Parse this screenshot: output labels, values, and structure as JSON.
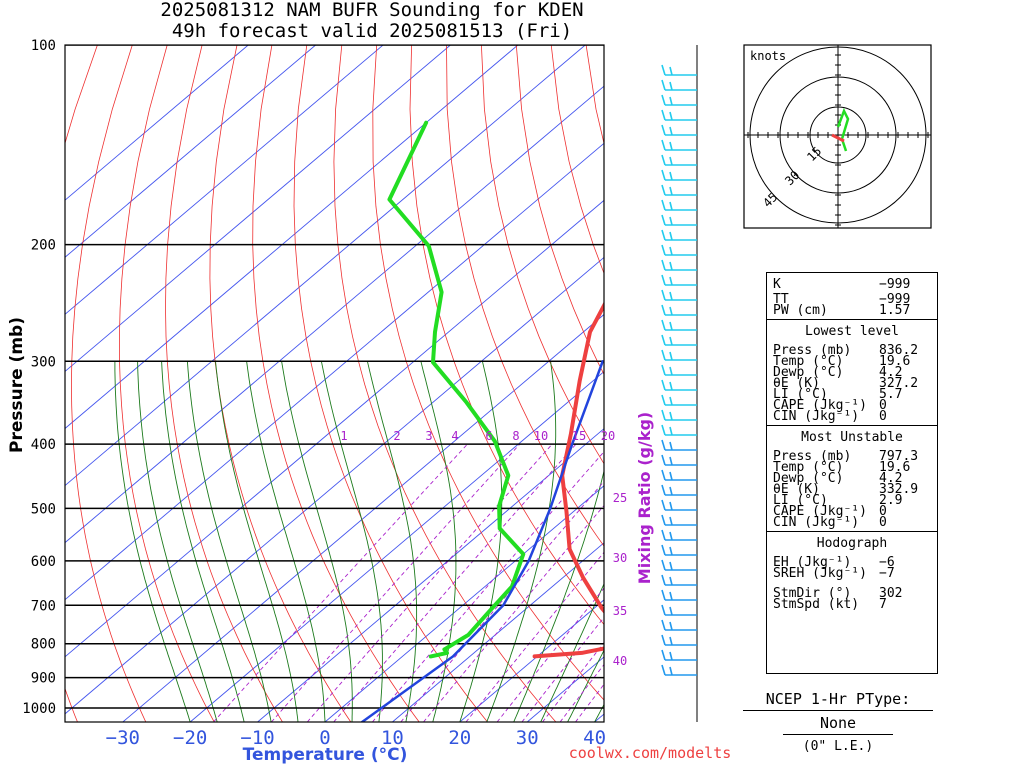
{
  "title_line1": "2025081312 NAM BUFR Sounding for KDEN",
  "title_line2": "49h forecast valid 2025081513 (Fri)",
  "watermark": "coolwx.com/modelts",
  "colors": {
    "temp": "#ee4040",
    "dewp": "#22dd22",
    "parcel": "#2244dd",
    "isotherm": "#4455ee",
    "dry_adiabat": "#ee3030",
    "moist_adiabat": "#1c7a1c",
    "mixing": "#aa22cc",
    "wind": "#22ccee"
  },
  "chart_data": {
    "type": "line",
    "xlabel": "Temperature (°C)",
    "ylabel": "Pressure (mb)",
    "y2label": "Mixing Ratio (g/kg)",
    "xlim": [
      -40,
      40
    ],
    "ylim": [
      1050,
      100
    ],
    "x_ticks": [
      "−30",
      "−20",
      "−10",
      "0",
      "10",
      "20",
      "30",
      "40"
    ],
    "y_ticks": [
      "100",
      "200",
      "300",
      "400",
      "500",
      "600",
      "700",
      "800",
      "900",
      "1000"
    ],
    "mixing_ratio_labels": [
      "1",
      "2",
      "3",
      "4",
      "6",
      "8",
      "10",
      "15",
      "20"
    ],
    "side_labels": [
      "25",
      "30",
      "35",
      "40"
    ],
    "series": [
      {
        "name": "Temp",
        "points": [
          [
            19.6,
            836
          ],
          [
            26,
            826
          ],
          [
            30,
            806
          ],
          [
            28,
            766
          ],
          [
            21,
            706
          ],
          [
            13,
            636
          ],
          [
            6,
            576
          ],
          [
            -1,
            506
          ],
          [
            -8,
            446
          ],
          [
            -14,
            386
          ],
          [
            -22,
            321
          ],
          [
            -29,
            271
          ],
          [
            -36,
            211
          ],
          [
            -44,
            161
          ],
          [
            -52,
            131
          ],
          [
            -59,
            101
          ]
        ]
      },
      {
        "name": "Dewp",
        "points": [
          [
            4.2,
            836
          ],
          [
            6,
            826
          ],
          [
            5,
            816
          ],
          [
            6,
            776
          ],
          [
            5,
            716
          ],
          [
            4,
            656
          ],
          [
            0,
            586
          ],
          [
            -8,
            536
          ],
          [
            -12,
            496
          ],
          [
            -16,
            446
          ],
          [
            -24,
            396
          ],
          [
            -35,
            346
          ],
          [
            -47,
            301
          ],
          [
            -52,
            271
          ],
          [
            -58,
            236
          ],
          [
            -68,
            201
          ],
          [
            -82,
            171
          ],
          [
            -90,
            131
          ]
        ]
      },
      {
        "name": "Parcel",
        "points": [
          [
            5.5,
            1050
          ],
          [
            7.5,
            836
          ],
          [
            6,
            700
          ],
          [
            2,
            600
          ],
          [
            -4,
            500
          ],
          [
            -12,
            400
          ],
          [
            -22,
            300
          ]
        ]
      }
    ]
  },
  "hodograph": {
    "units_label": "knots",
    "ring_labels": [
      "15",
      "30",
      "45"
    ],
    "green_points": [
      [
        0,
        2
      ],
      [
        3,
        6
      ],
      [
        5,
        4
      ],
      [
        2,
        -1
      ],
      [
        4,
        -4
      ]
    ],
    "red_points": [
      [
        1,
        -1
      ],
      [
        -1,
        0
      ]
    ]
  },
  "stats": {
    "K": "−999",
    "TT": "−999",
    "PW": "1.57",
    "lowest_title": "Lowest level",
    "lowest": [
      [
        "Press (mb)",
        "836.2"
      ],
      [
        "Temp (°C)",
        "19.6"
      ],
      [
        "Dewp (°C)",
        "4.2"
      ],
      [
        "θE (K)",
        "327.2"
      ],
      [
        "LI (°C)",
        "5.7"
      ],
      [
        "CAPE (Jkg⁻¹)",
        "0"
      ],
      [
        "CIN (Jkg⁻¹)",
        "0"
      ]
    ],
    "unstable_title": "Most Unstable",
    "unstable": [
      [
        "Press (mb)",
        "797.3"
      ],
      [
        "Temp (°C)",
        "19.6"
      ],
      [
        "Dewp (°C)",
        "4.2"
      ],
      [
        "θE (K)",
        "332.9"
      ],
      [
        "LI (°C)",
        "2.9"
      ],
      [
        "CAPE (Jkg⁻¹)",
        "0"
      ],
      [
        "CIN (Jkg⁻¹)",
        "0"
      ]
    ],
    "hodo_title": "Hodograph",
    "hodo": [
      [
        "EH (Jkg⁻¹)",
        "−6"
      ],
      [
        "SREH (Jkg⁻¹)",
        "−7"
      ],
      [
        "StmDir (°)",
        "302"
      ],
      [
        "StmSpd (kt)",
        "7"
      ]
    ]
  },
  "ptype": {
    "label": "NCEP 1-Hr PType:",
    "value": "None",
    "note": "(0\" L.E.)"
  }
}
